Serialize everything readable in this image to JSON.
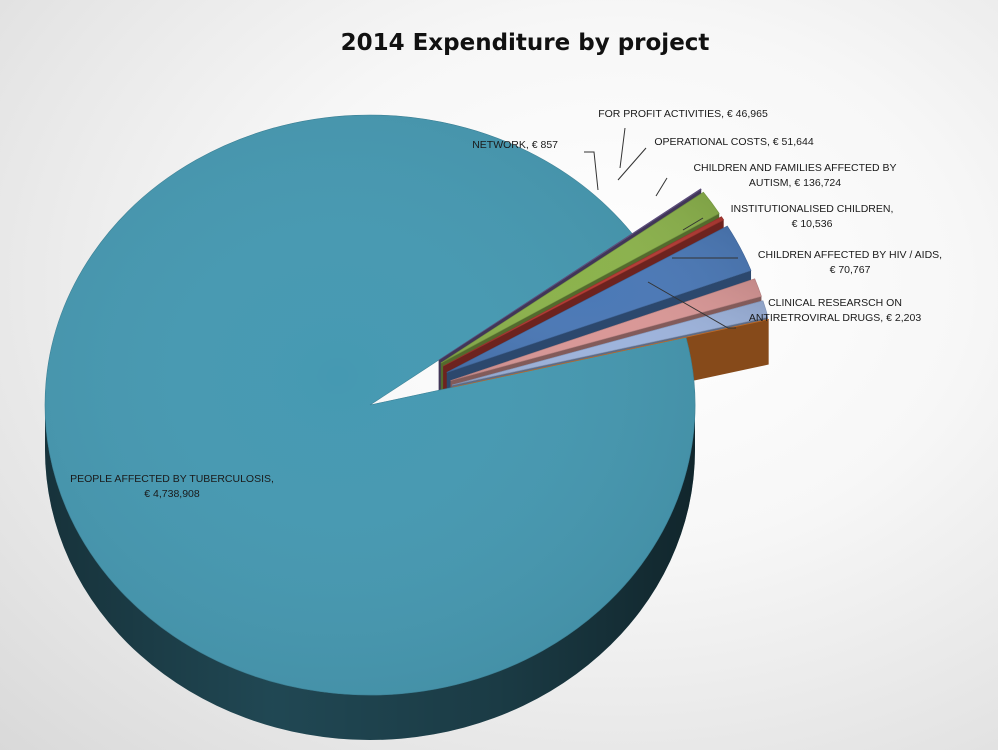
{
  "chart_data": {
    "type": "pie",
    "title": "2014 Expenditure by project",
    "slices": [
      {
        "name": "PEOPLE AFFECTED BY TUBERCULOSIS",
        "value": 4738908,
        "label": [
          "PEOPLE AFFECTED  BY TUBERCULOSIS,",
          "€ 4,738,908"
        ],
        "color": "#4599b2"
      },
      {
        "name": "CLINICAL RESEARSCH ON ANTIRETROVIRAL DRUGS",
        "value": 2203,
        "label": [
          "CLINICAL RESEARSCH  ON",
          "ANTIRETROVIRAL  DRUGS, € 2,203"
        ],
        "color": "#6c5a92"
      },
      {
        "name": "CHILDREN AFFECTED BY HIV / AIDS",
        "value": 70767,
        "label": [
          "CHILDREN  AFFECTED  BY HIV / AIDS,",
          "€ 70,767"
        ],
        "color": "#8bb24b"
      },
      {
        "name": "INSTITUTIONALISED CHILDREN",
        "value": 10536,
        "label": [
          "INSTITUTIONALISED  CHILDREN,",
          "€ 10,536"
        ],
        "color": "#b53a33"
      },
      {
        "name": "CHILDREN AND FAMILIES AFFECTED BY AUTISM",
        "value": 136724,
        "label": [
          "CHILDREN  AND  FAMILIES  AFFECTED  BY",
          "AUTISM, € 136,724"
        ],
        "color": "#4a78b6"
      },
      {
        "name": "OPERATIONAL COSTS",
        "value": 51644,
        "label": [
          "OPERATIONAL  COSTS, € 51,644"
        ],
        "color": "#d99796"
      },
      {
        "name": "FOR PROFIT ACTIVITIES",
        "value": 46965,
        "label": [
          "FOR PROFIT ACTIVITIES, € 46,965"
        ],
        "color": "#9db3dc"
      },
      {
        "name": "NETWORK",
        "value": 857,
        "label": [
          "NETWORK, € 857"
        ],
        "color": "#e07b2c"
      }
    ],
    "legend": "none",
    "style": "3d-exploded"
  }
}
